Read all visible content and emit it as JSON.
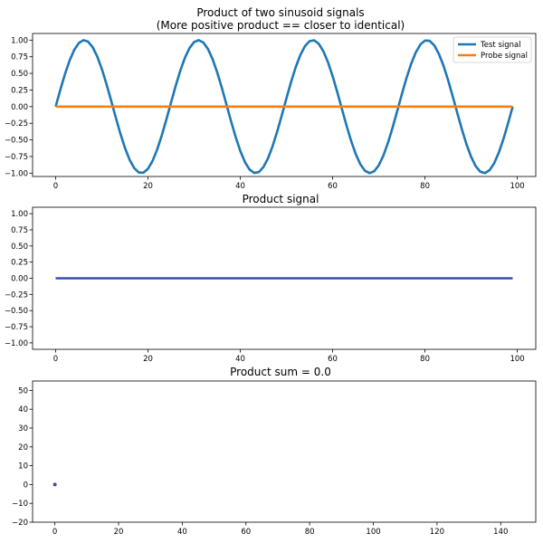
{
  "figure": {
    "title_line1": "Product of two sinusoid signals",
    "title_line2": "(More positive product == closer to identical)"
  },
  "colors": {
    "test": "#1f77b4",
    "probe": "#ff7f0e",
    "product": "#3a4fa8",
    "sum_title": "#3a4fa8",
    "axes": "#000000"
  },
  "chart_data": [
    {
      "type": "line",
      "title": "",
      "xlabel": "",
      "ylabel": "",
      "xlim": [
        -5,
        104
      ],
      "ylim": [
        -1.05,
        1.1
      ],
      "xticks": [
        0,
        20,
        40,
        60,
        80,
        100
      ],
      "yticks": [
        -1.0,
        -0.75,
        -0.5,
        -0.25,
        0.0,
        0.25,
        0.5,
        0.75,
        1.0
      ],
      "ytick_labels": [
        "−1.00",
        "−0.75",
        "−0.50",
        "−0.25",
        "0.00",
        "0.25",
        "0.50",
        "0.75",
        "1.00"
      ],
      "legend_position": "top-right",
      "series": [
        {
          "name": "Test signal",
          "function": "sin(2*pi*4*x/99)",
          "x_range": [
            0,
            99
          ],
          "samples": 100,
          "color": "#1f77b4"
        },
        {
          "name": "Probe signal",
          "function": "0",
          "x_range": [
            0,
            99
          ],
          "samples": 100,
          "color": "#ff7f0e"
        }
      ]
    },
    {
      "type": "line",
      "title": "Product signal",
      "xlabel": "",
      "ylabel": "",
      "xlim": [
        -5,
        104
      ],
      "ylim": [
        -1.1,
        1.1
      ],
      "xticks": [
        0,
        20,
        40,
        60,
        80,
        100
      ],
      "yticks": [
        -1.0,
        -0.75,
        -0.5,
        -0.25,
        0.0,
        0.25,
        0.5,
        0.75,
        1.0
      ],
      "ytick_labels": [
        "−1.00",
        "−0.75",
        "−0.50",
        "−0.25",
        "0.00",
        "0.25",
        "0.50",
        "0.75",
        "1.00"
      ],
      "series": [
        {
          "function": "0",
          "x_range": [
            0,
            99
          ],
          "samples": 100,
          "color": "#3a4fa8"
        }
      ]
    },
    {
      "type": "scatter",
      "title": "Product sum = 0.0",
      "xlabel": "",
      "ylabel": "",
      "xlim": [
        -7,
        151
      ],
      "ylim": [
        -20,
        55
      ],
      "xticks": [
        0,
        20,
        40,
        60,
        80,
        100,
        120,
        140
      ],
      "yticks": [
        -20,
        -10,
        0,
        10,
        20,
        30,
        40,
        50
      ],
      "ytick_labels": [
        "−20",
        "−10",
        "0",
        "10",
        "20",
        "30",
        "40",
        "50"
      ],
      "series": [
        {
          "x": [
            0
          ],
          "y": [
            0.0
          ],
          "color": "#3a4fa8"
        }
      ]
    }
  ]
}
